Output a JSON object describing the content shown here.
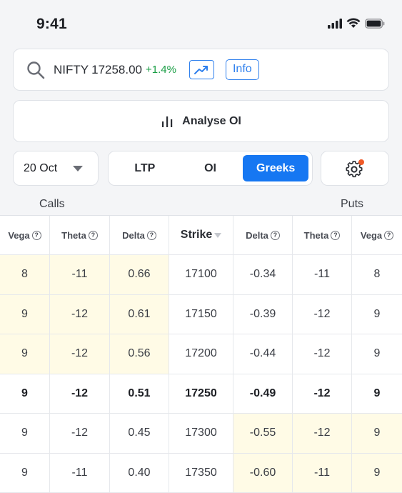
{
  "status": {
    "time": "9:41"
  },
  "search": {
    "symbol": "NIFTY",
    "price": "17258.00",
    "change": "+1.4%",
    "info_label": "Info"
  },
  "analyse": {
    "label": "Analyse OI"
  },
  "controls": {
    "expiry": "20 Oct",
    "tabs": [
      {
        "label": "LTP",
        "active": false
      },
      {
        "label": "OI",
        "active": false
      },
      {
        "label": "Greeks",
        "active": true
      }
    ]
  },
  "labels": {
    "calls": "Calls",
    "puts": "Puts"
  },
  "table": {
    "headers": {
      "call_vega": "Vega",
      "call_theta": "Theta",
      "call_delta": "Delta",
      "strike": "Strike",
      "put_delta": "Delta",
      "put_theta": "Theta",
      "put_vega": "Vega"
    },
    "rows": [
      {
        "cv": "8",
        "ct": "-11",
        "cd": "0.66",
        "strike": "17100",
        "pd": "-0.34",
        "pt": "-11",
        "pv": "8"
      },
      {
        "cv": "9",
        "ct": "-12",
        "cd": "0.61",
        "strike": "17150",
        "pd": "-0.39",
        "pt": "-12",
        "pv": "9"
      },
      {
        "cv": "9",
        "ct": "-12",
        "cd": "0.56",
        "strike": "17200",
        "pd": "-0.44",
        "pt": "-12",
        "pv": "9"
      },
      {
        "cv": "9",
        "ct": "-12",
        "cd": "0.51",
        "strike": "17250",
        "pd": "-0.49",
        "pt": "-12",
        "pv": "9"
      },
      {
        "cv": "9",
        "ct": "-12",
        "cd": "0.45",
        "strike": "17300",
        "pd": "-0.55",
        "pt": "-12",
        "pv": "9"
      },
      {
        "cv": "9",
        "ct": "-11",
        "cd": "0.40",
        "strike": "17350",
        "pd": "-0.60",
        "pt": "-11",
        "pv": "9"
      }
    ]
  },
  "colors": {
    "accent": "#1677f2",
    "positive": "#1a9e45",
    "itm_bg": "#fffbe6",
    "settings_dot": "#f05a28"
  }
}
